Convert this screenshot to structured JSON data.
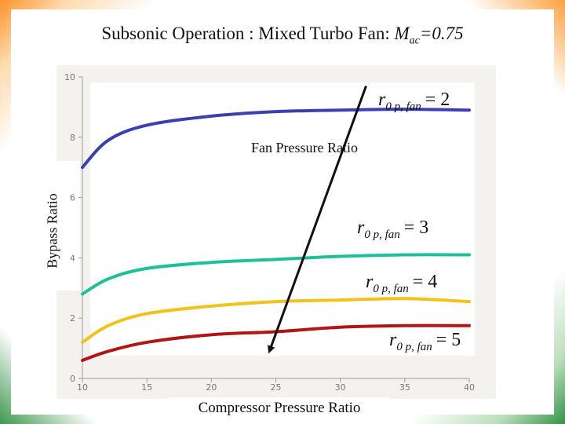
{
  "slide": {
    "title_prefix": "Subsonic Operation : Mixed Turbo Fan: ",
    "title_mach": "M",
    "title_mach_sub": "ac",
    "title_mach_value": "=0.75"
  },
  "colors": {
    "fpr_2": "#3a3fb2",
    "fpr_3": "#1fbf98",
    "fpr_4": "#f2c21a",
    "fpr_5": "#b01616",
    "arrow": "#111111"
  },
  "chart_data": {
    "type": "line",
    "title": "Subsonic Operation : Mixed Turbo Fan: Mac=0.75",
    "xlabel": "Compressor Pressure Ratio",
    "ylabel": "Bypass Ratio",
    "xlim": [
      10,
      40
    ],
    "ylim": [
      0,
      10
    ],
    "x_ticks": [
      "10",
      "15",
      "20",
      "25",
      "30",
      "35",
      "40"
    ],
    "y_ticks": [
      "0",
      "2",
      "4",
      "6",
      "8",
      "10"
    ],
    "grid": false,
    "series": [
      {
        "label": "r0p,fan = 2",
        "label_sub": "0 p, fan",
        "label_value": "= 2",
        "color_key": "fpr_2",
        "x": [
          10,
          12,
          15,
          20,
          25,
          30,
          35,
          40
        ],
        "y": [
          7.0,
          7.9,
          8.4,
          8.7,
          8.85,
          8.9,
          8.93,
          8.9
        ]
      },
      {
        "label": "r0p,fan = 3",
        "label_sub": "0 p, fan",
        "label_value": "= 3",
        "color_key": "fpr_3",
        "x": [
          10,
          12,
          15,
          20,
          25,
          30,
          35,
          40
        ],
        "y": [
          2.8,
          3.3,
          3.65,
          3.85,
          3.95,
          4.05,
          4.1,
          4.1
        ]
      },
      {
        "label": "r0p,fan = 4",
        "label_sub": "0 p, fan",
        "label_value": "= 4",
        "color_key": "fpr_4",
        "x": [
          10,
          12,
          15,
          20,
          25,
          30,
          35,
          40
        ],
        "y": [
          1.2,
          1.75,
          2.15,
          2.4,
          2.55,
          2.6,
          2.65,
          2.55
        ]
      },
      {
        "label": "r0p,fan = 5",
        "label_sub": "0 p, fan",
        "label_value": "= 5",
        "color_key": "fpr_5",
        "x": [
          10,
          12,
          15,
          20,
          25,
          30,
          35,
          40
        ],
        "y": [
          0.6,
          0.9,
          1.2,
          1.45,
          1.55,
          1.7,
          1.75,
          1.75
        ]
      }
    ],
    "annotations": {
      "fan_pressure_ratio": "Fan Pressure Ratio",
      "arrow_start": {
        "x": 32,
        "y": 9.7
      },
      "arrow_end": {
        "x": 24.5,
        "y": 0.9
      }
    }
  }
}
